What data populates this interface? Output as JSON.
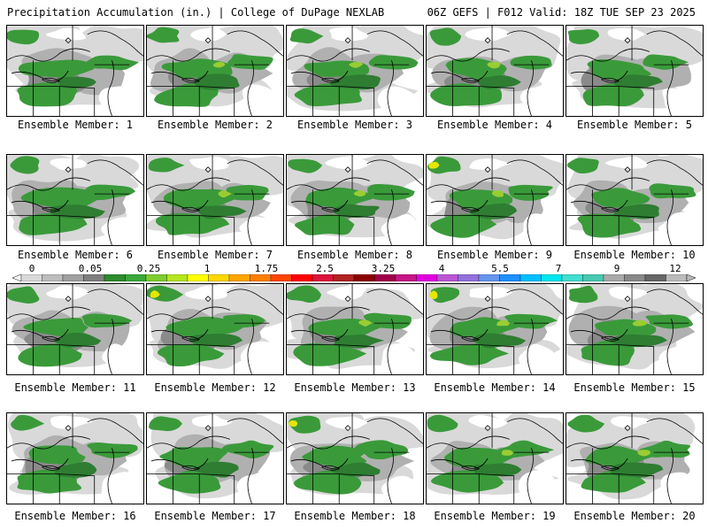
{
  "header": {
    "left_title": "Precipitation Accumulation (in.) | College of DuPage NEXLAB",
    "right_title": "06Z GEFS | F012 Valid: 18Z TUE SEP 23 2025"
  },
  "panels": [
    {
      "label": "Ensemble Member: 1"
    },
    {
      "label": "Ensemble Member: 2"
    },
    {
      "label": "Ensemble Member: 3"
    },
    {
      "label": "Ensemble Member: 4"
    },
    {
      "label": "Ensemble Member: 5"
    },
    {
      "label": "Ensemble Member: 6"
    },
    {
      "label": "Ensemble Member: 7"
    },
    {
      "label": "Ensemble Member: 8"
    },
    {
      "label": "Ensemble Member: 9"
    },
    {
      "label": "Ensemble Member: 10"
    },
    {
      "label": "Ensemble Member: 11"
    },
    {
      "label": "Ensemble Member: 12"
    },
    {
      "label": "Ensemble Member: 13"
    },
    {
      "label": "Ensemble Member: 14"
    },
    {
      "label": "Ensemble Member: 15"
    },
    {
      "label": "Ensemble Member: 16"
    },
    {
      "label": "Ensemble Member: 17"
    },
    {
      "label": "Ensemble Member: 18"
    },
    {
      "label": "Ensemble Member: 19"
    },
    {
      "label": "Ensemble Member: 20"
    }
  ],
  "colorbar": {
    "tick_labels": [
      "0",
      "0.05",
      "0.25",
      "1",
      "1.75",
      "2.5",
      "3.25",
      "4",
      "5.5",
      "7",
      "9",
      "12"
    ],
    "colors": [
      "#d9d9d9",
      "#bdbdbd",
      "#a0a0a0",
      "#7f7f7f",
      "#2e8b2e",
      "#3aa83a",
      "#7ccd2e",
      "#b4e61e",
      "#ffff00",
      "#ffd700",
      "#ffa500",
      "#ff7f00",
      "#ff4500",
      "#ff0000",
      "#dc143c",
      "#b22222",
      "#8b0000",
      "#a0004a",
      "#c71585",
      "#e000e0",
      "#ba55d3",
      "#9370db",
      "#6495ed",
      "#1e90ff",
      "#00bfff",
      "#00e5ee",
      "#40e0d0",
      "#48c9b0",
      "#a9a9a9",
      "#888888",
      "#666666",
      "#bbbbbb"
    ]
  },
  "palette": {
    "light_gray": "#d9d9d9",
    "mid_gray": "#b0b0b0",
    "dark_gray": "#8a8a8a",
    "green": "#3a9a3a",
    "dark_green": "#2e7d32",
    "yellow_green": "#9acd32",
    "yellow": "#e6e600"
  }
}
